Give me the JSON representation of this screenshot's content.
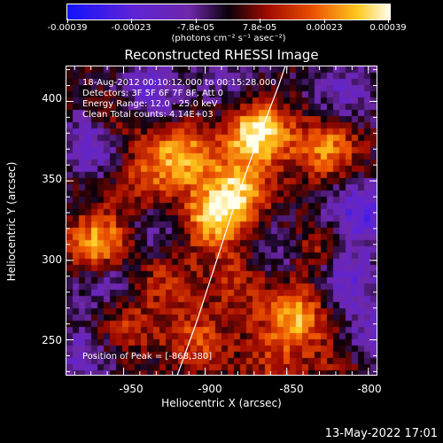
{
  "colorbar": {
    "tick_labels": [
      "-0.00039",
      "-0.00023",
      "-7.8e-05",
      "7.8e-05",
      "0.00023",
      "0.00039"
    ],
    "units": "(photons cm⁻² s⁻¹ asec⁻²)"
  },
  "title": "Reconstructed RHESSI Image",
  "info": {
    "time": "18-Aug-2012 00:10:12.000 to 00:15:28.000",
    "detectors": "Detectors: 3F 5F 6F 7F 8F, Att 0",
    "energy": "Energy Range: 12.0 - 25.0 keV",
    "clean": "Clean     Total counts: 4.14E+03",
    "peak": "Position of Peak = [-868,380]"
  },
  "chart_data": {
    "type": "heatmap",
    "title": "Reconstructed RHESSI Image",
    "xlabel": "Heliocentric X (arcsec)",
    "ylabel": "Heliocentric Y (arcsec)",
    "xlim": [
      -985,
      -795
    ],
    "ylim": [
      228,
      422
    ],
    "xticks": [
      -950,
      -900,
      -850,
      -800
    ],
    "yticks": [
      250,
      300,
      350,
      400
    ],
    "colorbar_range": [
      -0.00039,
      0.00039
    ],
    "peak": [
      -868,
      380
    ],
    "hotspots": [
      {
        "x": -868,
        "y": 380,
        "intensity": 1.0
      },
      {
        "x": -915,
        "y": 365,
        "intensity": 0.75
      },
      {
        "x": -880,
        "y": 345,
        "intensity": 0.7
      },
      {
        "x": -895,
        "y": 325,
        "intensity": 0.8
      },
      {
        "x": -825,
        "y": 370,
        "intensity": 0.65
      },
      {
        "x": -965,
        "y": 310,
        "intensity": 0.8
      },
      {
        "x": -955,
        "y": 385,
        "intensity": 0.55
      },
      {
        "x": -845,
        "y": 265,
        "intensity": 0.75
      },
      {
        "x": -830,
        "y": 305,
        "intensity": 0.45
      },
      {
        "x": -940,
        "y": 350,
        "intensity": 0.35
      },
      {
        "x": -925,
        "y": 290,
        "intensity": 0.4
      },
      {
        "x": -905,
        "y": 250,
        "intensity": 0.45
      },
      {
        "x": -950,
        "y": 260,
        "intensity": 0.4
      },
      {
        "x": -880,
        "y": 285,
        "intensity": 0.35
      },
      {
        "x": -860,
        "y": 235,
        "intensity": 0.3
      },
      {
        "x": -815,
        "y": 240,
        "intensity": 0.3
      }
    ],
    "cold_regions": [
      {
        "x": -965,
        "y": 375,
        "intensity": -0.7
      },
      {
        "x": -935,
        "y": 405,
        "intensity": -0.5
      },
      {
        "x": -815,
        "y": 405,
        "intensity": -0.4
      },
      {
        "x": -805,
        "y": 330,
        "intensity": -0.65
      },
      {
        "x": -815,
        "y": 290,
        "intensity": -0.6
      },
      {
        "x": -800,
        "y": 250,
        "intensity": -0.5
      },
      {
        "x": -930,
        "y": 315,
        "intensity": -0.35
      },
      {
        "x": -975,
        "y": 240,
        "intensity": -0.4
      },
      {
        "x": -960,
        "y": 285,
        "intensity": -0.45
      },
      {
        "x": -855,
        "y": 305,
        "intensity": -0.3
      },
      {
        "x": -885,
        "y": 410,
        "intensity": -0.3
      }
    ],
    "limb_curve": [
      {
        "x": -917,
        "y": 228
      },
      {
        "x": -905,
        "y": 262
      },
      {
        "x": -893,
        "y": 300
      },
      {
        "x": -881,
        "y": 338
      },
      {
        "x": -868,
        "y": 375
      },
      {
        "x": -855,
        "y": 410
      },
      {
        "x": -851,
        "y": 422
      }
    ]
  },
  "timestamp": "13-May-2022 17:01"
}
